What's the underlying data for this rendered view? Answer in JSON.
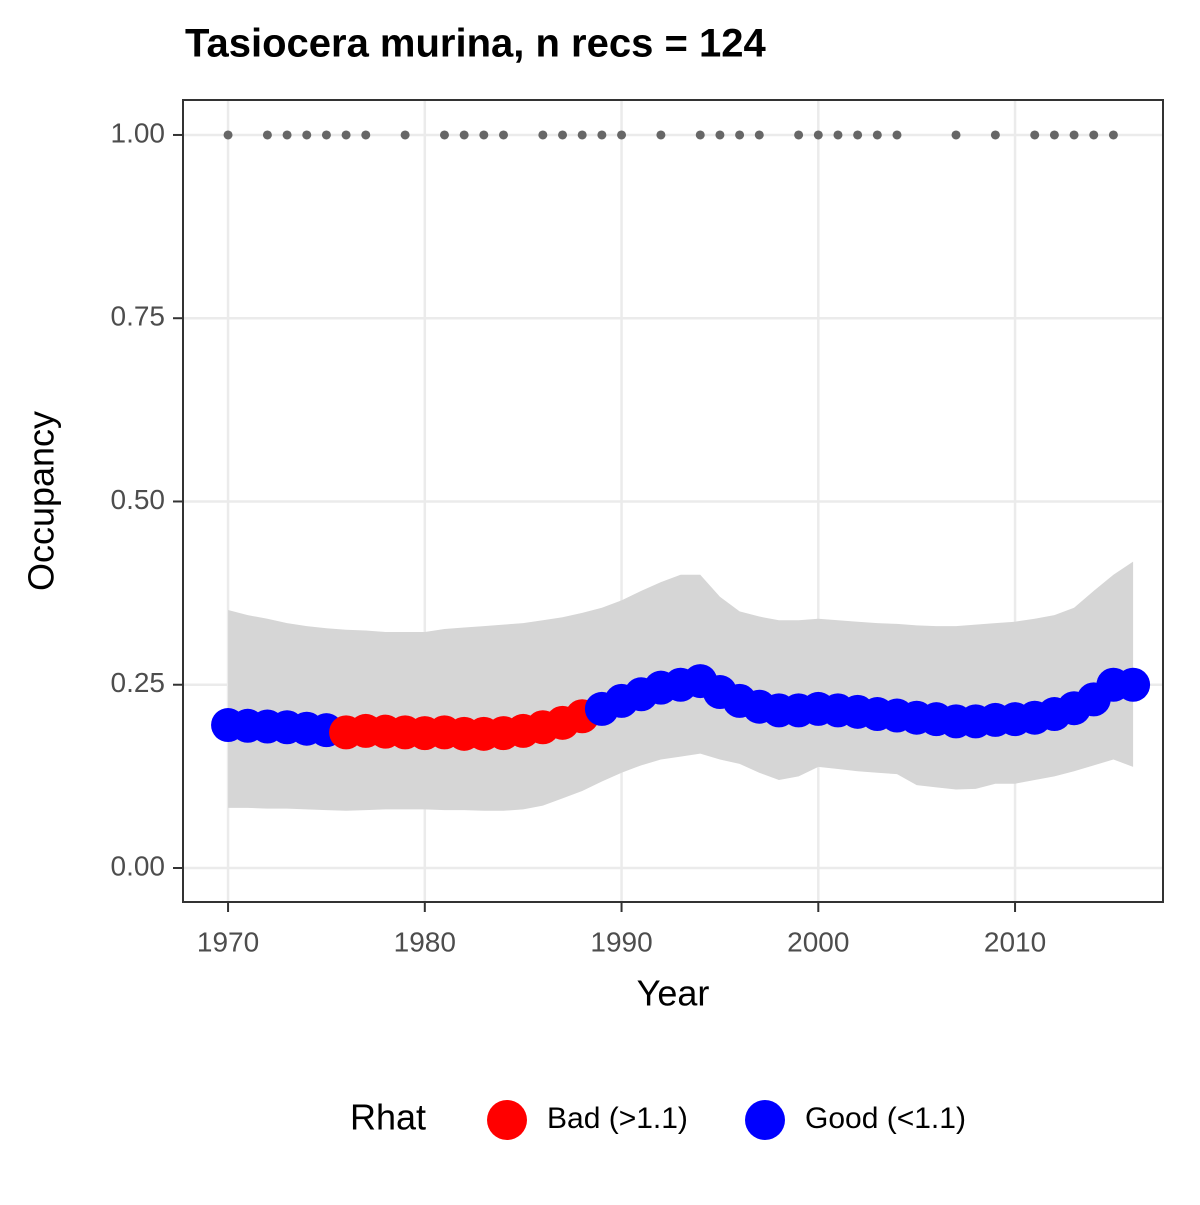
{
  "chart_data": {
    "type": "line",
    "title": "Tasiocera murina, n recs = 124",
    "x_label": "Year",
    "y_label": "Occupancy",
    "x": [
      1970,
      1971,
      1972,
      1973,
      1974,
      1975,
      1976,
      1977,
      1978,
      1979,
      1980,
      1981,
      1982,
      1983,
      1984,
      1985,
      1986,
      1987,
      1988,
      1989,
      1990,
      1991,
      1992,
      1993,
      1994,
      1995,
      1996,
      1997,
      1998,
      1999,
      2000,
      2001,
      2002,
      2003,
      2004,
      2005,
      2006,
      2007,
      2008,
      2009,
      2010,
      2011,
      2012,
      2013,
      2014,
      2015,
      2016
    ],
    "values": [
      0.195,
      0.194,
      0.193,
      0.192,
      0.19,
      0.188,
      0.185,
      0.187,
      0.186,
      0.185,
      0.184,
      0.185,
      0.183,
      0.183,
      0.184,
      0.187,
      0.192,
      0.198,
      0.207,
      0.217,
      0.228,
      0.237,
      0.246,
      0.25,
      0.255,
      0.24,
      0.228,
      0.22,
      0.215,
      0.215,
      0.217,
      0.215,
      0.213,
      0.21,
      0.208,
      0.205,
      0.203,
      0.2,
      0.2,
      0.202,
      0.203,
      0.205,
      0.21,
      0.218,
      0.23,
      0.25,
      0.25
    ],
    "upper": [
      0.352,
      0.345,
      0.34,
      0.334,
      0.33,
      0.327,
      0.325,
      0.324,
      0.322,
      0.322,
      0.322,
      0.326,
      0.328,
      0.33,
      0.332,
      0.334,
      0.338,
      0.342,
      0.348,
      0.355,
      0.365,
      0.378,
      0.39,
      0.4,
      0.4,
      0.37,
      0.35,
      0.343,
      0.338,
      0.338,
      0.34,
      0.338,
      0.336,
      0.334,
      0.333,
      0.331,
      0.33,
      0.33,
      0.332,
      0.334,
      0.336,
      0.34,
      0.345,
      0.355,
      0.378,
      0.4,
      0.418
    ],
    "lower": [
      0.082,
      0.082,
      0.081,
      0.081,
      0.08,
      0.079,
      0.078,
      0.079,
      0.08,
      0.08,
      0.08,
      0.079,
      0.079,
      0.078,
      0.078,
      0.08,
      0.085,
      0.095,
      0.105,
      0.118,
      0.13,
      0.14,
      0.148,
      0.152,
      0.156,
      0.148,
      0.142,
      0.13,
      0.12,
      0.125,
      0.138,
      0.135,
      0.132,
      0.13,
      0.128,
      0.113,
      0.11,
      0.107,
      0.108,
      0.115,
      0.115,
      0.12,
      0.125,
      0.132,
      0.14,
      0.148,
      0.138
    ],
    "ribbon_color": "#d6d6d6",
    "rhat": [
      "Good (<1.1)",
      "Good (<1.1)",
      "Good (<1.1)",
      "Good (<1.1)",
      "Good (<1.1)",
      "Good (<1.1)",
      "Bad (>1.1)",
      "Bad (>1.1)",
      "Bad (>1.1)",
      "Bad (>1.1)",
      "Bad (>1.1)",
      "Bad (>1.1)",
      "Bad (>1.1)",
      "Bad (>1.1)",
      "Bad (>1.1)",
      "Bad (>1.1)",
      "Bad (>1.1)",
      "Bad (>1.1)",
      "Bad (>1.1)",
      "Good (<1.1)",
      "Good (<1.1)",
      "Good (<1.1)",
      "Good (<1.1)",
      "Good (<1.1)",
      "Good (<1.1)",
      "Good (<1.1)",
      "Good (<1.1)",
      "Good (<1.1)",
      "Good (<1.1)",
      "Good (<1.1)",
      "Good (<1.1)",
      "Good (<1.1)",
      "Good (<1.1)",
      "Good (<1.1)",
      "Good (<1.1)",
      "Good (<1.1)",
      "Good (<1.1)",
      "Good (<1.1)",
      "Good (<1.1)",
      "Good (<1.1)",
      "Good (<1.1)",
      "Good (<1.1)",
      "Good (<1.1)",
      "Good (<1.1)",
      "Good (<1.1)",
      "Good (<1.1)",
      "Good (<1.1)"
    ],
    "legend": {
      "title": "Rhat",
      "position": "bottom",
      "entries": [
        {
          "label": "Bad (>1.1)",
          "color": "#ff0000"
        },
        {
          "label": "Good (<1.1)",
          "color": "#0000ff"
        }
      ]
    },
    "records": {
      "color": "#666666",
      "x": [
        1970,
        1972,
        1973,
        1974,
        1975,
        1976,
        1977,
        1979,
        1981,
        1982,
        1983,
        1984,
        1986,
        1987,
        1988,
        1989,
        1990,
        1992,
        1994,
        1995,
        1996,
        1997,
        1999,
        2000,
        2001,
        2002,
        2003,
        2004,
        2007,
        2009,
        2011,
        2012,
        2013,
        2014,
        2015
      ],
      "values": [
        1,
        1,
        1,
        1,
        1,
        1,
        1,
        1,
        1,
        1,
        1,
        1,
        1,
        1,
        1,
        1,
        1,
        1,
        1,
        1,
        1,
        1,
        1,
        1,
        1,
        1,
        1,
        1,
        1,
        1,
        1,
        1,
        1,
        1,
        1
      ]
    },
    "xlim": [
      1967.71,
      2017.52
    ],
    "ylim": [
      -0.0464,
      1.0477
    ],
    "xticks": [
      1970,
      1980,
      1990,
      2000,
      2010
    ],
    "yticks": [
      {
        "value": 0,
        "label": "0.00"
      },
      {
        "value": 0.25,
        "label": "0.25"
      },
      {
        "value": 0.5,
        "label": "0.50"
      },
      {
        "value": 0.75,
        "label": "0.75"
      },
      {
        "value": 1,
        "label": "1.00"
      }
    ],
    "grid": true
  }
}
